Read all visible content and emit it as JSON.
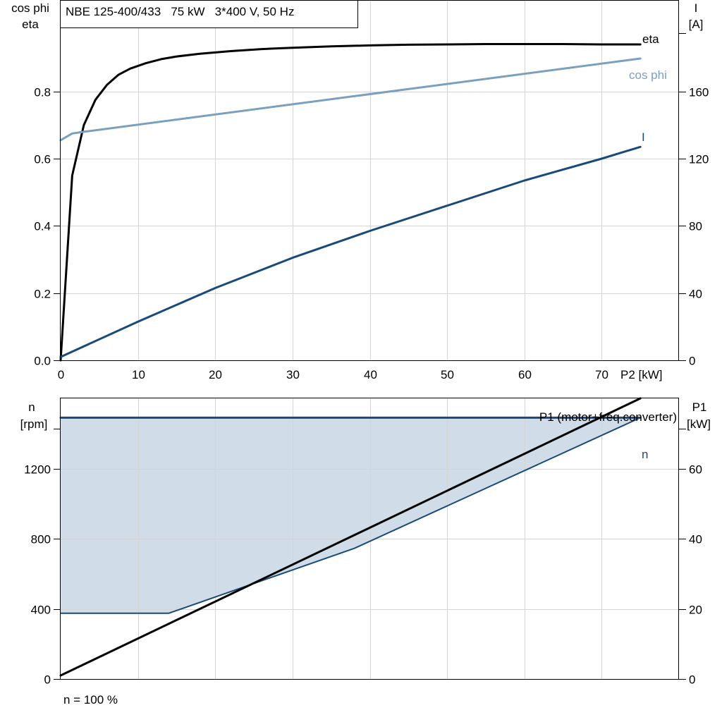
{
  "chart_data": [
    {
      "type": "line",
      "title": "NBE 125-400/433   75 kW   3*400 V, 50 Hz",
      "xlabel": "P2 [kW]",
      "ylabel_left": [
        "cos phi",
        "eta"
      ],
      "ylabel_right": [
        "I",
        "[A]"
      ],
      "xlim": [
        0,
        80
      ],
      "ylim_left": [
        0,
        1.07
      ],
      "ylim_right": [
        0,
        214
      ],
      "x_ticks": [
        0,
        10,
        20,
        30,
        40,
        50,
        60,
        70
      ],
      "x_tick_labels": [
        "0",
        "10",
        "20",
        "30",
        "40",
        "50",
        "60",
        "70"
      ],
      "y_left_ticks": [
        0,
        0.2,
        0.4,
        0.6,
        0.8
      ],
      "y_left_tick_labels": [
        "0.0",
        "0.2",
        "0.4",
        "0.6",
        "0.8"
      ],
      "y_right_ticks": [
        0,
        40,
        80,
        120,
        160
      ],
      "y_right_tick_labels": [
        "0",
        "40",
        "80",
        "120",
        "160"
      ],
      "grid": true,
      "series": [
        {
          "name": "eta",
          "axis": "left",
          "color": "#000000",
          "x": [
            0,
            1.5,
            3,
            4.5,
            6,
            7.5,
            9,
            11,
            13,
            15,
            18,
            22,
            26,
            30,
            35,
            40,
            45,
            50,
            55,
            60,
            65,
            70,
            75
          ],
          "y": [
            0,
            0.55,
            0.7,
            0.775,
            0.82,
            0.85,
            0.868,
            0.884,
            0.896,
            0.904,
            0.912,
            0.92,
            0.926,
            0.93,
            0.934,
            0.937,
            0.939,
            0.94,
            0.941,
            0.941,
            0.941,
            0.94,
            0.94
          ]
        },
        {
          "name": "cos phi",
          "axis": "left",
          "color": "#7a9fbf",
          "x": [
            0,
            1.5,
            3,
            75
          ],
          "y": [
            0.655,
            0.675,
            0.68,
            0.898
          ]
        },
        {
          "name": "I",
          "axis": "right",
          "color": "#1a4a7a",
          "x": [
            0,
            10,
            20,
            30,
            40,
            50,
            60,
            70,
            75
          ],
          "y": [
            2,
            23,
            43,
            61,
            77,
            92,
            107,
            120,
            127
          ]
        }
      ]
    },
    {
      "type": "line",
      "xlim": [
        0,
        80
      ],
      "ylabel_left": [
        "n",
        "[rpm]"
      ],
      "ylabel_right": [
        "P1",
        "[kW]"
      ],
      "ylim_left": [
        0,
        1600
      ],
      "ylim_right": [
        0,
        80
      ],
      "y_left_ticks": [
        0,
        400,
        800,
        1200
      ],
      "y_left_tick_labels": [
        "0",
        "400",
        "800",
        "1200"
      ],
      "y_right_ticks": [
        0,
        20,
        40,
        60
      ],
      "y_right_tick_labels": [
        "0",
        "20",
        "40",
        "60"
      ],
      "grid": true,
      "footnote": "n = 100 %",
      "series": [
        {
          "name": "n",
          "axis": "left",
          "color": "#1a4a7a",
          "x": [
            0,
            75
          ],
          "y": [
            1490,
            1490
          ]
        },
        {
          "axis": "left",
          "color": "#1a4a7a",
          "x": [
            0,
            14,
            38,
            75
          ],
          "y": [
            375,
            375,
            745,
            1490
          ]
        },
        {
          "name": "P1 (motor+freq.converter)",
          "axis": "right",
          "color": "#000000",
          "x": [
            0,
            75
          ],
          "y": [
            1,
            80
          ]
        }
      ],
      "fill_color": "#d0dce8"
    }
  ]
}
